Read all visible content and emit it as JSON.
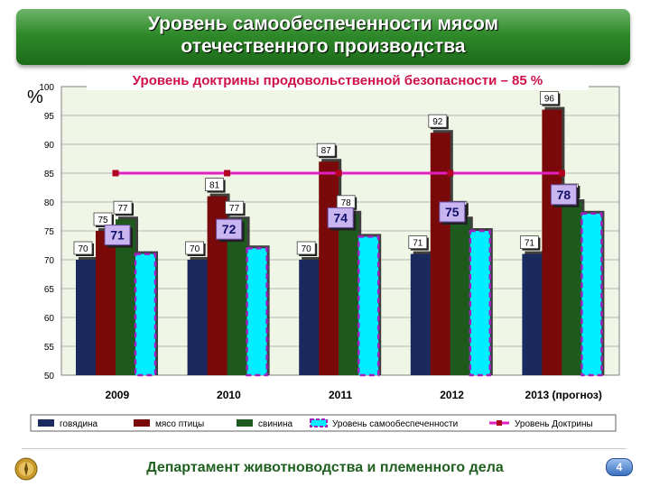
{
  "header": {
    "title_line1": "Уровень самообеспеченности мясом",
    "title_line2": "отечественного производства"
  },
  "footer": {
    "text": "Департамент животноводства и племенного дела",
    "page_number": "4"
  },
  "chart_data": {
    "type": "bar",
    "title": "Уровень доктрины продовольственной безопасности – 85 %",
    "ylabel": "%",
    "ylim": [
      50,
      100
    ],
    "yticks": [
      50,
      55,
      60,
      65,
      70,
      75,
      80,
      85,
      90,
      95,
      100
    ],
    "categories": [
      "2009",
      "2010",
      "2011",
      "2012",
      "2013 (прогноз)"
    ],
    "series": [
      {
        "name": "говядина",
        "values": [
          70,
          70,
          70,
          71,
          71
        ],
        "color": "#1a2a5e"
      },
      {
        "name": "мясо птицы",
        "values": [
          75,
          81,
          87,
          92,
          96
        ],
        "color": "#7a0a0a"
      },
      {
        "name": "свинина",
        "values": [
          77,
          77,
          78,
          77,
          80
        ],
        "color": "#1e5a1e"
      },
      {
        "name": "Уровень самообеспеченности",
        "values": [
          71,
          72,
          74,
          75,
          78
        ],
        "color": "#00eeff",
        "border": "#a020c0"
      }
    ],
    "line": {
      "name": "Уровень Доктрины",
      "value": 85,
      "color": "#e020c0"
    },
    "grid": true,
    "legend_position": "bottom"
  }
}
